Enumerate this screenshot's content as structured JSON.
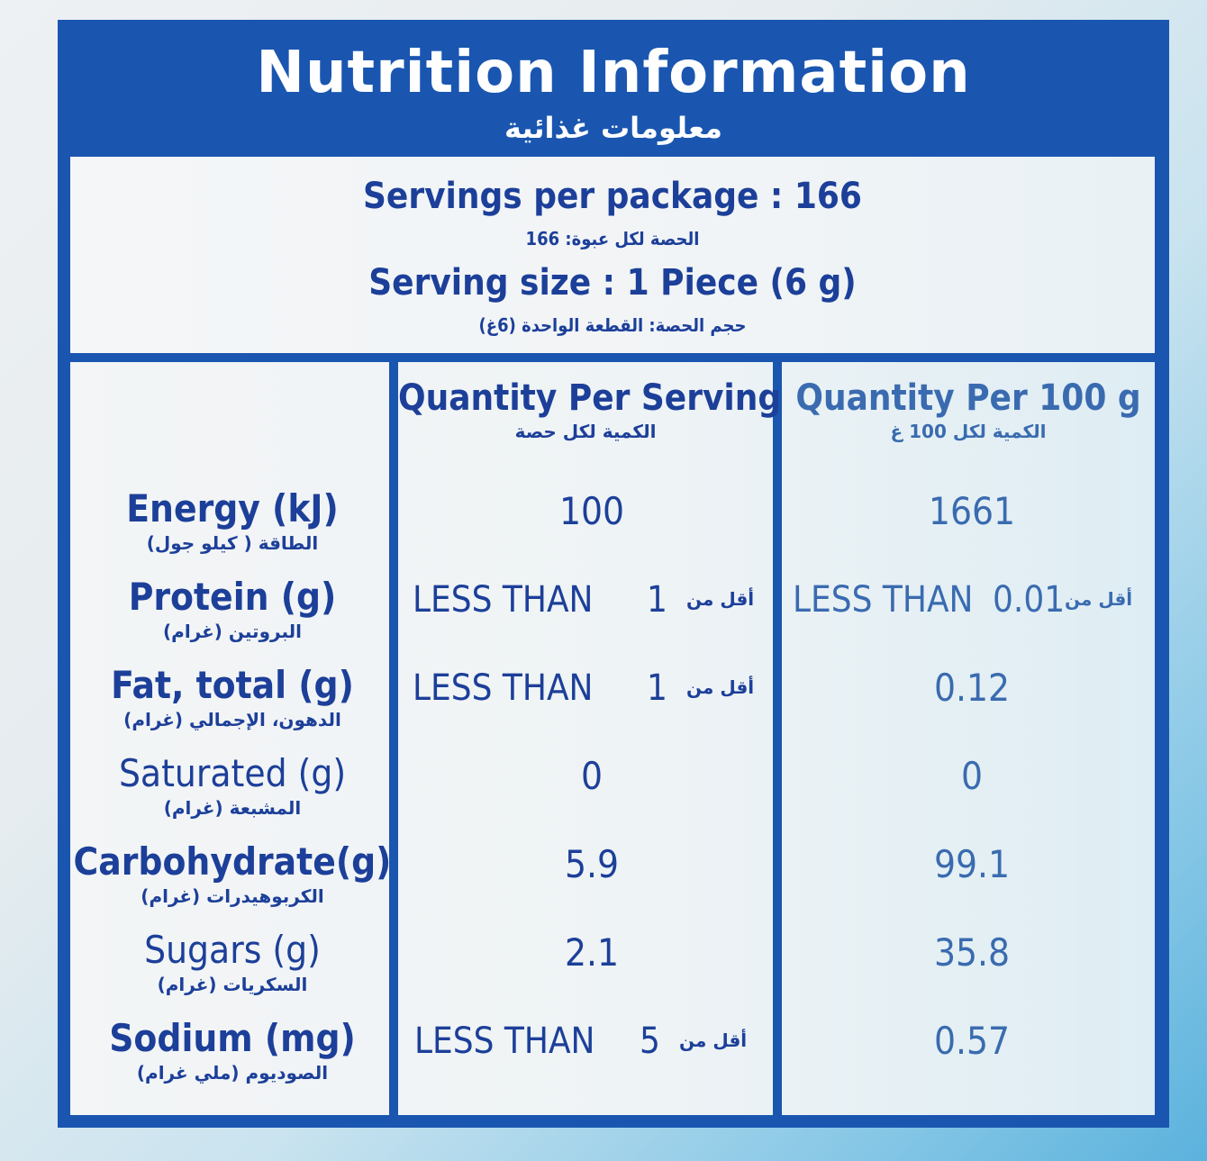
{
  "header": {
    "title": "Nutrition Information",
    "title_ar": "معلومات غذائية"
  },
  "servings": {
    "per_package": "Servings per package : 166",
    "per_package_ar": "الحصة لكل عبوة: 166",
    "size": "Serving size  :  1 Piece  (6 g)",
    "size_ar": "حجم الحصة: القطعة الواحدة (6غ)"
  },
  "columns": {
    "per_serving": "Quantity Per Serving",
    "per_serving_ar": "الكمية لكل حصة",
    "per_100g": "Quantity Per 100 g",
    "per_100g_ar": "الكمية لكل 100 غ"
  },
  "rows": [
    {
      "name": "Energy (kJ)",
      "name_ar": "الطاقة ( كيلو جول)",
      "per_serving": "100",
      "per_100g": "1661"
    },
    {
      "name": "Protein (g)",
      "name_ar": "البروتين (غرام)",
      "per_serving_prefix": "LESS THAN",
      "per_serving": "1",
      "per_serving_ar": "أقل من",
      "per_100g_prefix": "LESS THAN",
      "per_100g": "0.01",
      "per_100g_ar": "أقل من"
    },
    {
      "name": "Fat, total (g)",
      "name_ar": "الدهون، الإجمالي (غرام)",
      "per_serving_prefix": "LESS THAN",
      "per_serving": "1",
      "per_serving_ar": "أقل من",
      "per_100g": "0.12"
    },
    {
      "name": "Saturated (g)",
      "name_ar": "المشبعة (غرام)",
      "per_serving": "0",
      "per_100g": "0"
    },
    {
      "name": "Carbohydrate(g)",
      "name_ar": "الكربوهيدرات (غرام)",
      "per_serving": "5.9",
      "per_100g": "99.1"
    },
    {
      "name": "Sugars (g)",
      "name_ar": "السكريات (غرام)",
      "per_serving": "2.1",
      "per_100g": "35.8"
    },
    {
      "name": "Sodium (mg)",
      "name_ar": "الصوديوم (ملي غرام)",
      "per_serving_prefix": "LESS THAN",
      "per_serving": "5",
      "per_serving_ar": "أقل من",
      "per_100g": "0.57"
    }
  ],
  "colors": {
    "panel_blue": "#1a56b0",
    "text_blue": "#1c3f99"
  }
}
